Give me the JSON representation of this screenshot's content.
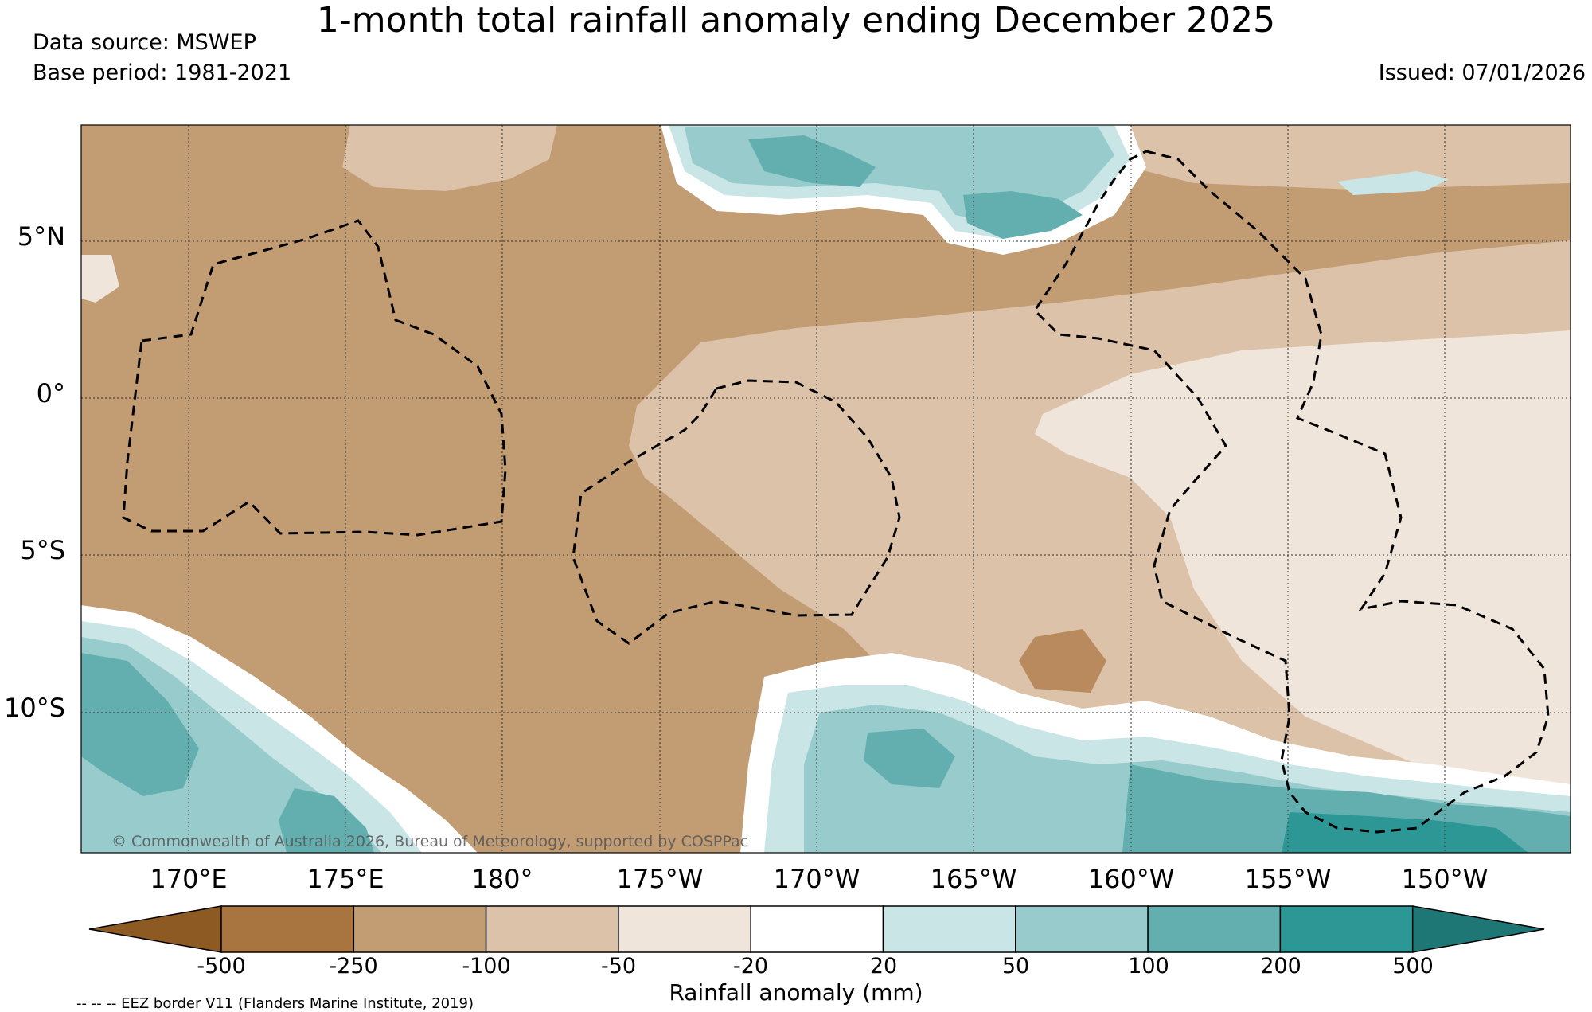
{
  "header": {
    "title": "1-month total rainfall anomaly ending December 2025",
    "data_source": "Data source: MSWEP",
    "base_period": "Base period: 1981-2021",
    "issued": "Issued: 07/01/2026"
  },
  "map": {
    "lat_labels": [
      "5°N",
      "0°",
      "5°S",
      "10°S"
    ],
    "lon_labels": [
      "170°E",
      "175°E",
      "180°",
      "175°W",
      "170°W",
      "165°W",
      "160°W",
      "155°W",
      "150°W"
    ],
    "copyright": "© Commonwealth of Australia 2026, Bureau of Meteorology, supported by COSPPac",
    "eez_note": "-- -- -- EEZ border V11 (Flanders Marine Institute, 2019)"
  },
  "colorbar": {
    "title": "Rainfall anomaly (mm)",
    "ticks": [
      "-500",
      "-250",
      "-100",
      "-50",
      "-20",
      "20",
      "50",
      "100",
      "200",
      "500"
    ],
    "colors": [
      "#8e5a23",
      "#a87540",
      "#c29c73",
      "#dbc2a8",
      "#f0e5db",
      "#ffffff",
      "#c9e5e6",
      "#97cbcc",
      "#63afb0",
      "#2d9796",
      "#1f7775"
    ]
  }
}
